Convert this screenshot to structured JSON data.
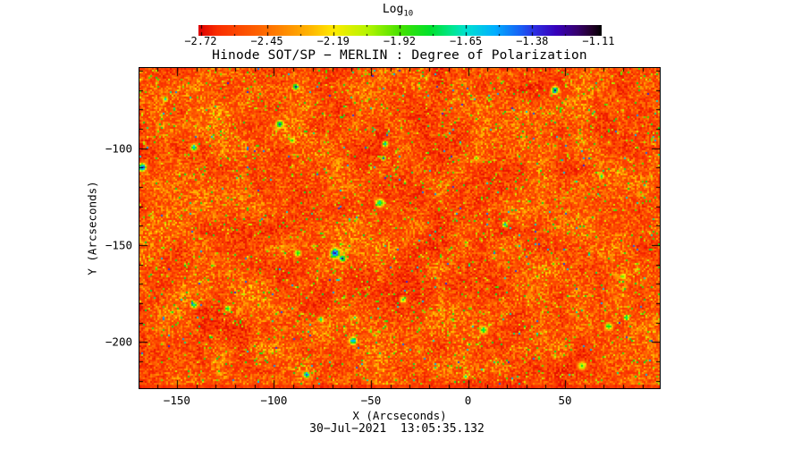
{
  "chart_data": {
    "type": "heatmap",
    "title": "Hinode SOT/SP − MERLIN : Degree of Polarization",
    "xlabel": "X (Arcseconds)",
    "ylabel": "Y (Arcseconds)",
    "timestamp": "30−Jul−2021  13:05:35.132",
    "x_tick_labels": [
      "−150",
      "−100",
      "−50",
      "0",
      "50"
    ],
    "x_tick_values": [
      -150,
      -100,
      -50,
      0,
      50
    ],
    "y_tick_labels": [
      "−100",
      "−150",
      "−200"
    ],
    "y_tick_values": [
      -100,
      -150,
      -200
    ],
    "xlim": [
      -169.3,
      98.8
    ],
    "ylim": [
      -223.9,
      -58.6
    ],
    "grid": false,
    "background_color": "#ffffff",
    "colorbar": {
      "title": "Log",
      "title_sub": "10",
      "tick_labels": [
        "−2.72",
        "−2.45",
        "−2.19",
        "−1.92",
        "−1.65",
        "−1.38",
        "−1.11"
      ],
      "tick_values": [
        -2.72,
        -2.45,
        -2.19,
        -1.92,
        -1.65,
        -1.38,
        -1.11
      ],
      "range": [
        -2.72,
        -1.11
      ],
      "orientation": "horizontal-top"
    },
    "value_description": "Log10 degree of polarization over a quiet-Sun region: background mostly −2.7 to −2.3 (red/orange/yellow) with sparse small speckles of enhanced polarization up to about −1.2 (green, cyan, blue cores).",
    "colormap_stops": [
      [
        0.0,
        221,
        0,
        0
      ],
      [
        0.045,
        250,
        45,
        0
      ],
      [
        0.17,
        255,
        110,
        0
      ],
      [
        0.28,
        255,
        185,
        0
      ],
      [
        0.335,
        255,
        235,
        0
      ],
      [
        0.42,
        180,
        245,
        0
      ],
      [
        0.5,
        70,
        225,
        0
      ],
      [
        0.575,
        0,
        225,
        45
      ],
      [
        0.63,
        0,
        230,
        145
      ],
      [
        0.665,
        0,
        225,
        210
      ],
      [
        0.735,
        0,
        175,
        255
      ],
      [
        0.8,
        25,
        95,
        245
      ],
      [
        0.835,
        45,
        45,
        225
      ],
      [
        0.89,
        55,
        0,
        185
      ],
      [
        0.94,
        55,
        0,
        110
      ],
      [
        0.975,
        35,
        0,
        45
      ],
      [
        1.0,
        5,
        0,
        5
      ]
    ]
  }
}
